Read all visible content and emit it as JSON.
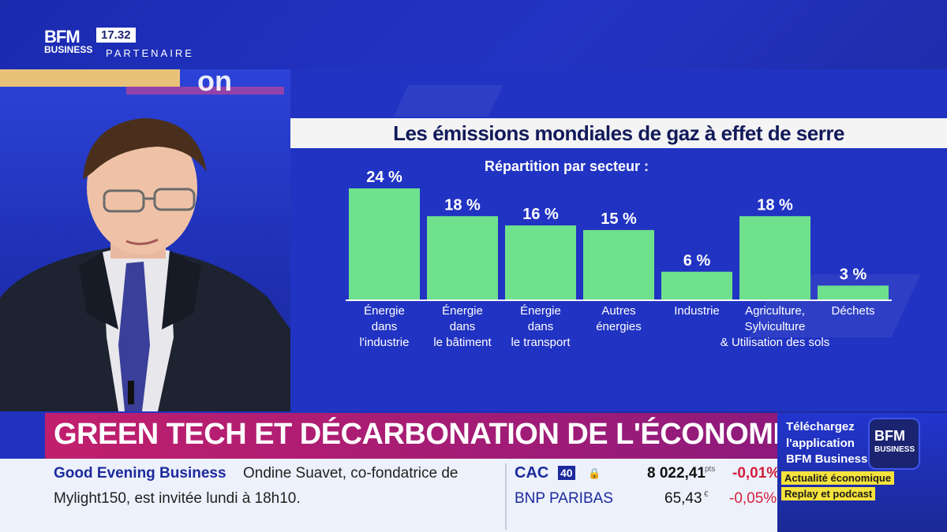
{
  "broadcast": {
    "channel_logo_top": "BFM",
    "channel_logo_bottom": "BUSINESS",
    "clock": "17.32",
    "partner_label": "PARTENAIRE",
    "studio_text": "on"
  },
  "chart_data": {
    "type": "bar",
    "title": "Les émissions mondiales de gaz à effet de serre",
    "subtitle": "Répartition par secteur :",
    "categories": [
      [
        "Énergie",
        "dans",
        "l'industrie"
      ],
      [
        "Énergie",
        "dans",
        "le bâtiment"
      ],
      [
        "Énergie",
        "dans",
        "le transport"
      ],
      [
        "Autres",
        "énergies"
      ],
      [
        "Industrie"
      ],
      [
        "Agriculture,",
        "Sylviculture",
        "& Utilisation des sols"
      ],
      [
        "Déchets"
      ]
    ],
    "values": [
      24,
      18,
      16,
      15,
      6,
      18,
      3
    ],
    "value_labels": [
      "24 %",
      "18 %",
      "16 %",
      "15 %",
      "6 %",
      "18 %",
      "3 %"
    ],
    "ylim": [
      0,
      24
    ],
    "bar_color": "#6fe18d"
  },
  "headline": "GREEN TECH ET DÉCARBONATION DE L'ÉCONOMIE",
  "ticker": {
    "show_title": "Good Evening Business",
    "line1": "Ondine Suavet, co-fondatrice de",
    "line2": "Mylight150, est invitée lundi à 18h10.",
    "market": {
      "index_name": "CAC",
      "index_badge": "40",
      "index_value": "8 022,41",
      "index_unit": "pts",
      "index_change": "-0,01%",
      "stock_name": "BNP PARIBAS",
      "stock_value": "65,43",
      "stock_unit": "€",
      "stock_change": "-0,05%"
    }
  },
  "promo": {
    "line1": "Téléchargez",
    "line2": "l'application",
    "line3": "BFM Business",
    "logo_top": "BFM",
    "logo_bottom": "BUSINESS",
    "tag1": "Actualité économique",
    "tag2": "Replay et podcast"
  },
  "colors": {
    "background_blue": "#2133c2",
    "headline_magenta": "#c11f6d",
    "negative_red": "#d21f3c",
    "tag_yellow": "#f5e23c"
  }
}
